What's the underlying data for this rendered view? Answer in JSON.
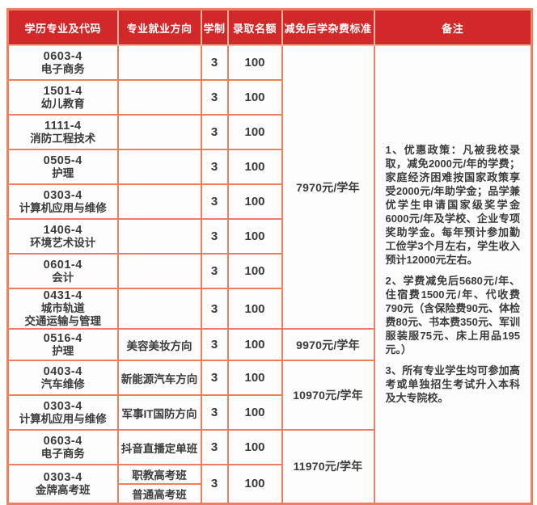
{
  "colors": {
    "header_bg": "#d2282a",
    "header_text": "#ffffff",
    "border": "#ef7f5e",
    "body_text": "#3b3b3b"
  },
  "table": {
    "headers": [
      "学历专业及代码",
      "专业就业方向",
      "学制",
      "录取名额",
      "减免后学杂费标准",
      "备注"
    ],
    "rows": [
      {
        "code": "0603-4",
        "major": "电子商务",
        "direction": "",
        "duration": "3",
        "quota": "100"
      },
      {
        "code": "1501-4",
        "major": "幼儿教育",
        "direction": "",
        "duration": "3",
        "quota": "100"
      },
      {
        "code": "1111-4",
        "major": "消防工程技术",
        "direction": "",
        "duration": "3",
        "quota": "100"
      },
      {
        "code": "0505-4",
        "major": "护理",
        "direction": "",
        "duration": "3",
        "quota": "100"
      },
      {
        "code": "0303-4",
        "major": "计算机应用与维修",
        "direction": "",
        "duration": "3",
        "quota": "100"
      },
      {
        "code": "1406-4",
        "major": "环境艺术设计",
        "direction": "",
        "duration": "3",
        "quota": "100"
      },
      {
        "code": "0601-4",
        "major": "会计",
        "direction": "",
        "duration": "3",
        "quota": "100"
      },
      {
        "code": "0431-4",
        "major": "城市轨道\n交通运输与管理",
        "direction": "",
        "duration": "3",
        "quota": "100"
      },
      {
        "code": "0516-4",
        "major": "护理",
        "direction": "美容美妆方向",
        "duration": "3",
        "quota": "100"
      },
      {
        "code": "0403-4",
        "major": "汽车维修",
        "direction": "新能源汽车方向",
        "duration": "3",
        "quota": "100"
      },
      {
        "code": "0303-4",
        "major": "计算机应用与维修",
        "direction": "军事IT国防方向",
        "duration": "3",
        "quota": "100"
      },
      {
        "code": "0603-4",
        "major": "电子商务",
        "direction": "抖音直播定单班",
        "duration": "3",
        "quota": "100"
      },
      {
        "code": "0303-4",
        "major": "金牌高考班",
        "direction": "职教高考班",
        "direction2": "普通高考班",
        "duration": "3",
        "quota": "100"
      }
    ],
    "fees": [
      "7970元/学年",
      "9970元/学年",
      "10970元/学年",
      "11970元/学年"
    ],
    "remarks": [
      "1、优惠政策：凡被我校录取，减免2000元/年的学费；家庭经济困难按国家政策享受2000元/年助学金；品学兼优学生申请国家级奖学金6000元/年及学校、企业专项奖助学金。每年预计参加勤工俭学3个月左右，学生收入预计12000元左右。",
      "2、学费减免后5680元/年、住宿费1500元/年、代收费790元（含保险费90元、体检费80元、书本费350元、军训服装服75元、床上用品195元。）",
      "3、所有专业学生均可参加高考或单独招生考试升入本科及大专院校。"
    ]
  }
}
